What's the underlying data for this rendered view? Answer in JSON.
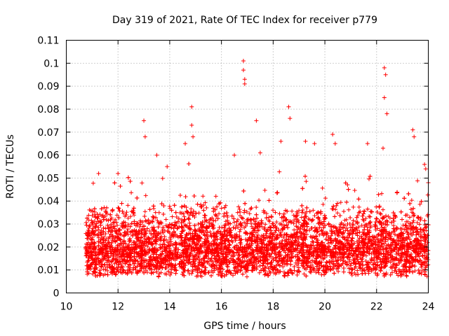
{
  "chart_data": {
    "type": "scatter",
    "title": "Day 319 of 2021, Rate Of TEC Index for receiver p779",
    "xlabel": "GPS time / hours",
    "ylabel": "ROTI / TECUs",
    "xlim": [
      10,
      24
    ],
    "ylim": [
      0,
      0.11
    ],
    "x_ticks": [
      "10",
      "12",
      "14",
      "16",
      "18",
      "20",
      "22",
      "24"
    ],
    "y_ticks": [
      "0",
      "0.01",
      "0.02",
      "0.03",
      "0.04",
      "0.05",
      "0.06",
      "0.07",
      "0.08",
      "0.09",
      "0.1",
      "0.11"
    ],
    "grid": true,
    "marker": "plus",
    "series_color": "#ff0000",
    "x_range_data": [
      10.75,
      24.0
    ],
    "notable_peaks": [
      {
        "x": 11.25,
        "y": 0.052
      },
      {
        "x": 12.0,
        "y": 0.052
      },
      {
        "x": 13.0,
        "y": 0.075
      },
      {
        "x": 13.05,
        "y": 0.068
      },
      {
        "x": 13.5,
        "y": 0.06
      },
      {
        "x": 13.9,
        "y": 0.055
      },
      {
        "x": 14.6,
        "y": 0.065
      },
      {
        "x": 14.85,
        "y": 0.081
      },
      {
        "x": 14.85,
        "y": 0.073
      },
      {
        "x": 14.9,
        "y": 0.068
      },
      {
        "x": 16.5,
        "y": 0.06
      },
      {
        "x": 16.85,
        "y": 0.101
      },
      {
        "x": 16.85,
        "y": 0.097
      },
      {
        "x": 16.9,
        "y": 0.093
      },
      {
        "x": 16.9,
        "y": 0.091
      },
      {
        "x": 17.35,
        "y": 0.075
      },
      {
        "x": 17.5,
        "y": 0.061
      },
      {
        "x": 18.3,
        "y": 0.066
      },
      {
        "x": 18.6,
        "y": 0.081
      },
      {
        "x": 18.65,
        "y": 0.076
      },
      {
        "x": 19.25,
        "y": 0.066
      },
      {
        "x": 19.6,
        "y": 0.065
      },
      {
        "x": 20.3,
        "y": 0.069
      },
      {
        "x": 20.4,
        "y": 0.065
      },
      {
        "x": 21.65,
        "y": 0.065
      },
      {
        "x": 22.25,
        "y": 0.063
      },
      {
        "x": 22.3,
        "y": 0.098
      },
      {
        "x": 22.3,
        "y": 0.085
      },
      {
        "x": 22.35,
        "y": 0.095
      },
      {
        "x": 22.4,
        "y": 0.078
      },
      {
        "x": 23.4,
        "y": 0.071
      },
      {
        "x": 23.45,
        "y": 0.068
      },
      {
        "x": 23.9,
        "y": 0.054
      },
      {
        "x": 24.0,
        "y": 0.048
      }
    ],
    "bulk_distribution": {
      "x_start": 10.75,
      "x_end": 24.0,
      "typical_range": [
        0.005,
        0.035
      ],
      "median_approx": 0.016,
      "minimum_approx": 0.003,
      "point_count_approx": 6000
    }
  }
}
